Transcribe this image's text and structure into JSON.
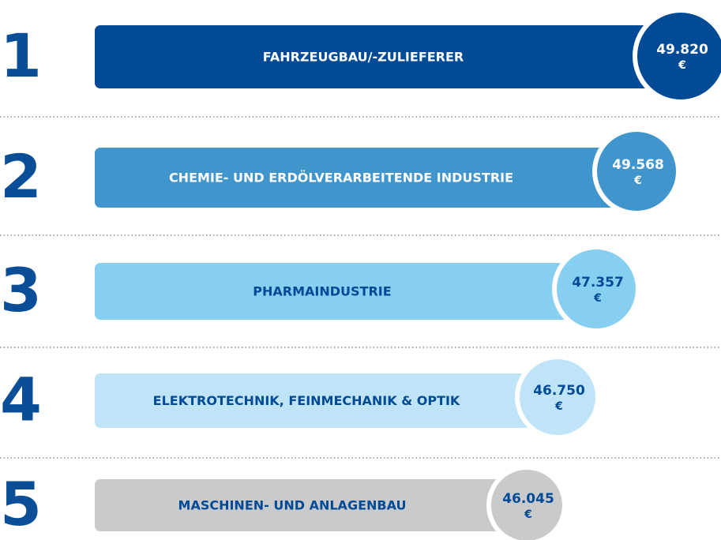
{
  "items": [
    {
      "rank": "1",
      "label": "FAHRZEUGBAU/-ZULIEFERER",
      "value": "49.820"
    },
    {
      "rank": "2",
      "label": "CHEMIE- UND ERDÖLVERARBEITENDE INDUSTRIE",
      "value": "49.568"
    },
    {
      "rank": "3",
      "label": "PHARMAINDUSTRIE",
      "value": "47.357"
    },
    {
      "rank": "4",
      "label": "ELEKTROTECHNIK, FEINMECHANIK & OPTIK",
      "value": "46.750"
    },
    {
      "rank": "5",
      "label": "MASCHINEN- UND ANLAGENBAU",
      "value": "46.045"
    }
  ],
  "currency": "€"
}
